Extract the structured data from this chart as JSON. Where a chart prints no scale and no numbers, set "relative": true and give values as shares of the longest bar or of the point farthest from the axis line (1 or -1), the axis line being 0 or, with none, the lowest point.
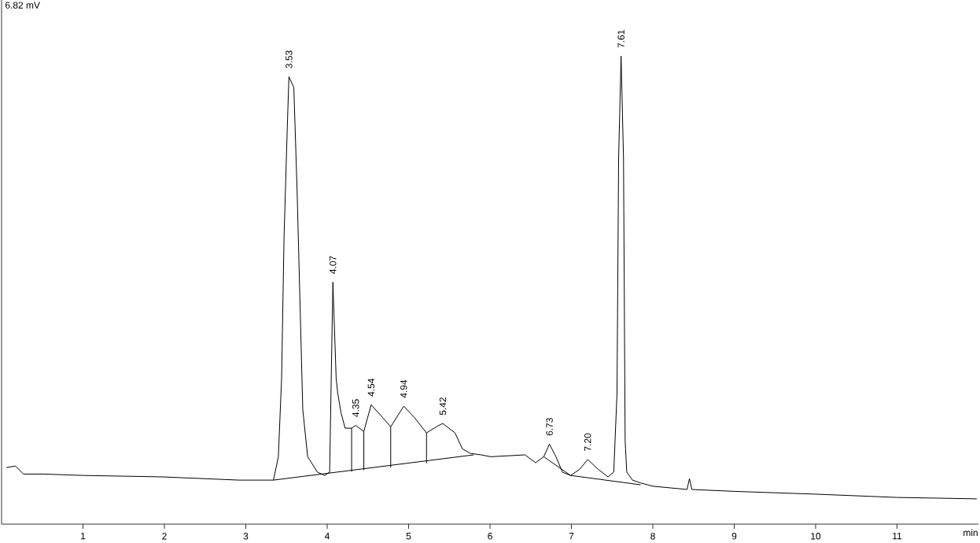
{
  "chart_data": {
    "type": "line",
    "relative": true,
    "xlabel": "min",
    "xlim": [
      0,
      12
    ],
    "xticks": [
      1,
      2,
      3,
      4,
      5,
      6,
      7,
      8,
      9,
      10,
      11
    ],
    "series": [
      {
        "color": "#000000",
        "x": [
          0.06,
          0.17,
          0.27,
          0.52,
          1.0,
          1.96,
          2.92,
          3.34,
          3.4,
          3.44,
          3.47,
          3.51,
          3.53,
          3.59,
          3.63,
          3.67,
          3.7,
          3.76,
          3.88,
          3.97,
          4.03,
          4.07,
          4.11,
          4.13,
          4.17,
          4.22,
          4.3,
          4.35,
          4.45,
          4.54,
          4.68,
          4.78,
          4.94,
          5.07,
          5.22,
          5.37,
          5.42,
          5.57,
          5.66,
          5.76,
          5.89,
          6.01,
          6.43,
          6.56,
          6.66,
          6.73,
          6.81,
          6.89,
          6.99,
          7.1,
          7.2,
          7.33,
          7.45,
          7.52,
          7.56,
          7.58,
          7.61,
          7.64,
          7.66,
          7.68,
          7.75,
          7.85,
          8.0,
          8.42,
          8.45,
          8.48,
          9.0,
          10.0,
          11.0,
          11.98
        ],
        "values": [
          0.121,
          0.124,
          0.107,
          0.107,
          0.104,
          0.101,
          0.094,
          0.094,
          0.144,
          0.312,
          0.614,
          0.849,
          0.956,
          0.933,
          0.715,
          0.446,
          0.245,
          0.144,
          0.111,
          0.104,
          0.111,
          0.517,
          0.312,
          0.279,
          0.238,
          0.205,
          0.205,
          0.211,
          0.198,
          0.255,
          0.228,
          0.208,
          0.252,
          0.228,
          0.195,
          0.211,
          0.215,
          0.195,
          0.161,
          0.151,
          0.148,
          0.144,
          0.148,
          0.131,
          0.144,
          0.171,
          0.144,
          0.111,
          0.104,
          0.117,
          0.138,
          0.117,
          0.101,
          0.111,
          0.279,
          0.782,
          1.0,
          0.782,
          0.178,
          0.111,
          0.094,
          0.088,
          0.081,
          0.074,
          0.097,
          0.074,
          0.07,
          0.064,
          0.057,
          0.054
        ]
      },
      {
        "color": "#000000",
        "x": [
          3.34,
          5.8,
          null,
          6.66,
          6.99,
          7.85
        ],
        "values": [
          0.094,
          0.148,
          null,
          0.144,
          0.104,
          0.084
        ]
      },
      {
        "color": "#000000",
        "x": [
          4.3,
          4.3,
          null,
          4.45,
          4.45,
          null,
          4.78,
          4.78,
          null,
          5.22,
          5.22
        ],
        "values": [
          0.205,
          0.112,
          null,
          0.198,
          0.115,
          null,
          0.208,
          0.121,
          null,
          0.195,
          0.13
        ]
      }
    ],
    "annotations": [
      "6.82 mV",
      {
        "text": "3.53",
        "x": 3.53,
        "y": 0.956
      },
      {
        "text": "4.07",
        "x": 4.07,
        "y": 0.517
      },
      {
        "text": "4.35",
        "x": 4.35,
        "y": 0.211
      },
      {
        "text": "4.54",
        "x": 4.54,
        "y": 0.255
      },
      {
        "text": "4.94",
        "x": 4.94,
        "y": 0.252
      },
      {
        "text": "5.42",
        "x": 5.42,
        "y": 0.215
      },
      {
        "text": "6.73",
        "x": 6.73,
        "y": 0.171
      },
      {
        "text": "7.20",
        "x": 7.2,
        "y": 0.138
      },
      {
        "text": "7.61",
        "x": 7.61,
        "y": 1.0
      }
    ]
  }
}
